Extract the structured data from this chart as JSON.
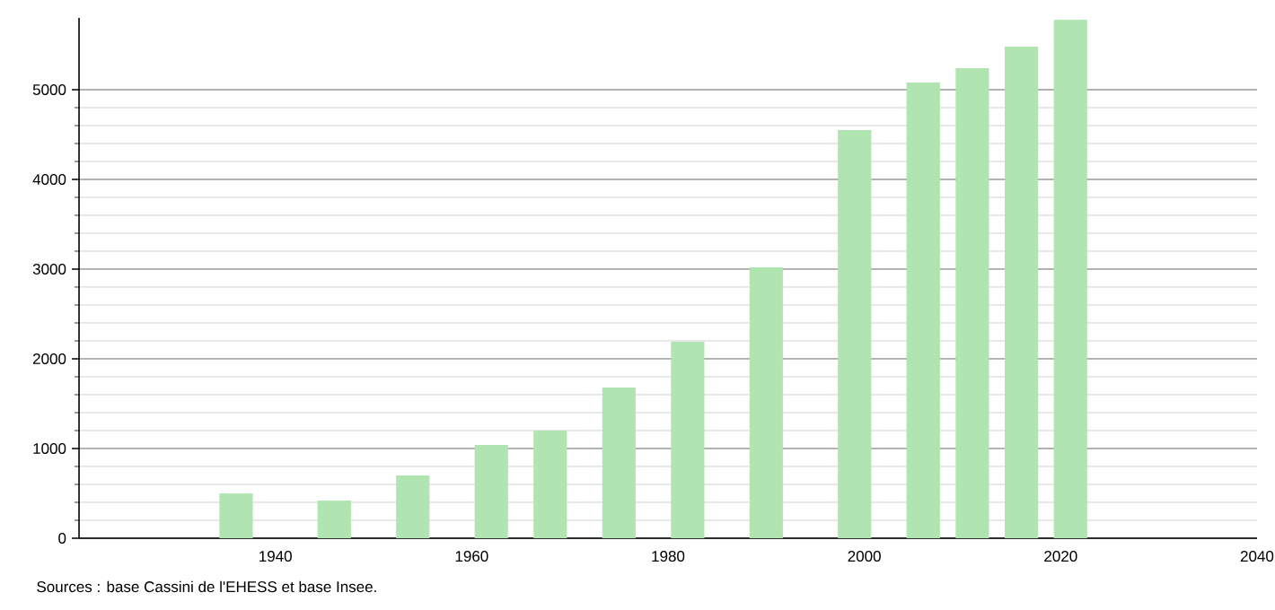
{
  "chart_data": {
    "type": "bar",
    "x": [
      1936,
      1946,
      1954,
      1962,
      1968,
      1975,
      1982,
      1990,
      1999,
      2006,
      2011,
      2016,
      2021
    ],
    "values": [
      500,
      420,
      700,
      1040,
      1200,
      1680,
      2190,
      3020,
      4550,
      5080,
      5240,
      5480,
      5780
    ],
    "color": "#b0e4b0",
    "xlim": [
      1920,
      2040
    ],
    "ylim": [
      0,
      5800
    ],
    "xticks": [
      1940,
      1960,
      1980,
      2000,
      2020,
      2040
    ],
    "yticks": [
      0,
      1000,
      2000,
      3000,
      4000,
      5000
    ],
    "grid": "y",
    "annotations": [
      "Sources : base Cassini de l'EHESS et base Insee."
    ]
  }
}
